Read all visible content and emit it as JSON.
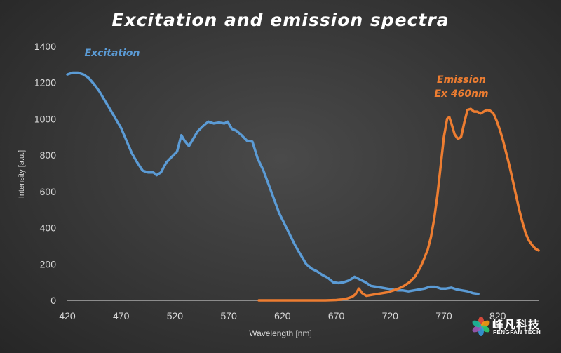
{
  "chart_data": {
    "type": "line",
    "title": "Excitation and emission spectra",
    "xlabel": "Wavelength [nm]",
    "ylabel": "Intensity [a.u.]",
    "xlim": [
      420,
      858
    ],
    "ylim": [
      0,
      1400
    ],
    "xticks": [
      420,
      470,
      520,
      570,
      620,
      670,
      720,
      770,
      820
    ],
    "yticks": [
      0,
      200,
      400,
      600,
      800,
      1000,
      1200,
      1400
    ],
    "grid": false,
    "series": [
      {
        "name": "Excitation",
        "color": "#5b9bd5",
        "label_lines": [
          "Excitation"
        ],
        "x": [
          420,
          425,
          430,
          435,
          440,
          445,
          450,
          455,
          460,
          465,
          470,
          475,
          480,
          485,
          490,
          495,
          500,
          503,
          507,
          512,
          517,
          522,
          526,
          529,
          533,
          537,
          541,
          546,
          551,
          556,
          561,
          566,
          569,
          573,
          577,
          582,
          587,
          592,
          597,
          602,
          607,
          612,
          617,
          622,
          627,
          632,
          637,
          642,
          647,
          652,
          657,
          662,
          667,
          672,
          677,
          682,
          687,
          692,
          697,
          702,
          707,
          712,
          717,
          722,
          727,
          732,
          737,
          742,
          747,
          752,
          757,
          762,
          767,
          772,
          777,
          782,
          787,
          792,
          797,
          802
        ],
        "y": [
          1245,
          1255,
          1255,
          1245,
          1225,
          1190,
          1150,
          1100,
          1050,
          1000,
          950,
          880,
          810,
          760,
          715,
          705,
          705,
          690,
          705,
          760,
          790,
          820,
          910,
          880,
          850,
          890,
          930,
          960,
          985,
          975,
          980,
          975,
          985,
          945,
          935,
          910,
          880,
          875,
          780,
          720,
          640,
          560,
          480,
          420,
          360,
          300,
          250,
          200,
          175,
          160,
          140,
          125,
          100,
          95,
          100,
          110,
          130,
          115,
          100,
          80,
          75,
          70,
          65,
          60,
          55,
          55,
          50,
          55,
          60,
          65,
          75,
          75,
          65,
          65,
          70,
          60,
          55,
          50,
          40,
          35
        ]
      },
      {
        "name": "Emission Ex 460nm",
        "color": "#ed7d31",
        "label_lines": [
          "Emission",
          "Ex 460nm"
        ],
        "x": [
          598,
          610,
          620,
          630,
          640,
          650,
          660,
          670,
          675,
          680,
          685,
          688,
          691,
          694,
          698,
          703,
          708,
          713,
          718,
          723,
          728,
          733,
          738,
          743,
          748,
          751,
          755,
          758,
          761,
          764,
          767,
          770,
          773,
          775,
          777,
          780,
          783,
          786,
          789,
          792,
          795,
          798,
          801,
          804,
          807,
          810,
          813,
          816,
          819,
          822,
          825,
          828,
          831,
          834,
          837,
          840,
          843,
          846,
          849,
          852,
          855,
          858
        ],
        "y": [
          0,
          0,
          0,
          0,
          0,
          0,
          0,
          2,
          5,
          10,
          20,
          35,
          65,
          40,
          25,
          30,
          35,
          40,
          45,
          55,
          65,
          80,
          100,
          130,
          180,
          220,
          280,
          350,
          450,
          580,
          740,
          900,
          1000,
          1010,
          975,
          915,
          890,
          900,
          980,
          1050,
          1055,
          1040,
          1040,
          1030,
          1040,
          1050,
          1045,
          1030,
          990,
          940,
          880,
          810,
          740,
          660,
          580,
          500,
          430,
          370,
          330,
          305,
          285,
          275
        ]
      }
    ]
  },
  "branding": {
    "logo_cn": "峰凡科技",
    "logo_en": "FENGFAN TECH",
    "logo_colors": [
      "#e74c3c",
      "#f39c12",
      "#2ecc71",
      "#3498db",
      "#9b59b6",
      "#1abc9c"
    ]
  }
}
